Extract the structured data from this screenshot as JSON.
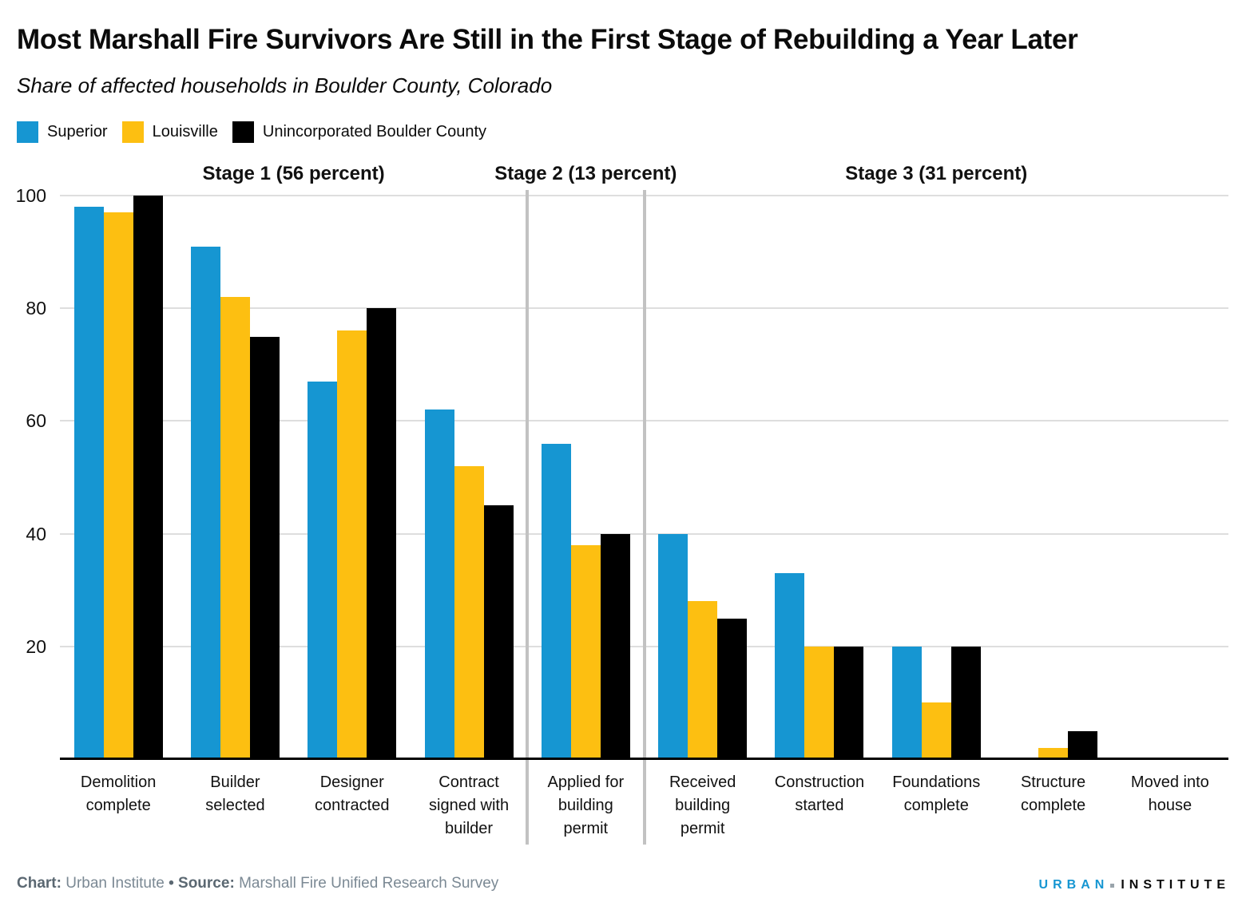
{
  "header": {
    "title": "Most Marshall Fire Survivors Are Still in the First Stage of Rebuilding a Year Later",
    "subtitle": "Share of affected households in Boulder County, Colorado"
  },
  "legend": {
    "items": [
      {
        "label": "Superior",
        "color": "#1696d2"
      },
      {
        "label": "Louisville",
        "color": "#fdbf11"
      },
      {
        "label": "Unincorporated Boulder County",
        "color": "#000000"
      }
    ]
  },
  "chart_data": {
    "type": "bar",
    "title": "Most Marshall Fire Survivors Are Still in the First Stage of Rebuilding a Year Later",
    "subtitle": "Share of affected households in Boulder County, Colorado",
    "categories": [
      "Demolition complete",
      "Builder selected",
      "Designer contracted",
      "Contract signed with builder",
      "Applied for building permit",
      "Received building permit",
      "Construction started",
      "Foundations complete",
      "Structure complete",
      "Moved into house"
    ],
    "series": [
      {
        "name": "Superior",
        "color": "#1696d2",
        "values": [
          98,
          91,
          67,
          62,
          56,
          40,
          33,
          20,
          0,
          0
        ]
      },
      {
        "name": "Louisville",
        "color": "#fdbf11",
        "values": [
          97,
          82,
          76,
          52,
          38,
          28,
          20,
          10,
          2,
          0
        ]
      },
      {
        "name": "Unincorporated Boulder County",
        "color": "#000000",
        "values": [
          100,
          75,
          80,
          45,
          40,
          25,
          20,
          20,
          5,
          0
        ]
      }
    ],
    "ylim": [
      0,
      100
    ],
    "yticks": [
      20,
      40,
      60,
      80,
      100
    ],
    "xlabel": "",
    "ylabel": "",
    "grid": true,
    "legend_position": "top-left",
    "sections": [
      {
        "label": "Stage 1 (56 percent)",
        "from": 0,
        "to": 3
      },
      {
        "label": "Stage 2 (13 percent)",
        "from": 4,
        "to": 4
      },
      {
        "label": "Stage 3 (31 percent)",
        "from": 5,
        "to": 9
      }
    ]
  },
  "footer": {
    "chart_label": "Chart:",
    "chart_value": "Urban Institute",
    "separator": "•",
    "source_label": "Source:",
    "source_value": "Marshall Fire Unified Research Survey",
    "logo": {
      "urban": "URBAN",
      "institute": "INSTITUTE",
      "urban_color": "#1696d2",
      "institute_color": "#0b0b0b"
    }
  }
}
